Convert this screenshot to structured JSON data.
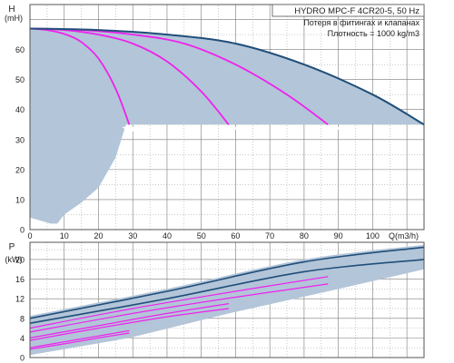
{
  "chart_data": [
    {
      "type": "line",
      "title": "HYDRO MPC-F 4CR20-5, 50 Hz",
      "annotations": [
        "Потеря в фитингах и клапанах",
        "Плотность = 1000 kg/m3"
      ],
      "xlabel": "Q(m3/h)",
      "ylabel_top": "H",
      "ylabel_unit": "(mH)",
      "xlim": [
        0,
        115
      ],
      "ylim": [
        0,
        75
      ],
      "x_ticks": [
        0,
        10,
        20,
        30,
        40,
        50,
        60,
        70,
        80,
        90,
        100
      ],
      "y_ticks": [
        0,
        10,
        20,
        30,
        40,
        50,
        60
      ],
      "grid": true,
      "series": [
        {
          "pumps": 1,
          "color": "#ee22ee",
          "points": [
            [
              0,
              67
            ],
            [
              5,
              66.5
            ],
            [
              10,
              65.2
            ],
            [
              15,
              62.5
            ],
            [
              20,
              57
            ],
            [
              25,
              47
            ],
            [
              29,
              35
            ]
          ]
        },
        {
          "pumps": 2,
          "color": "#ee22ee",
          "points": [
            [
              0,
              67
            ],
            [
              10,
              66.5
            ],
            [
              20,
              65
            ],
            [
              30,
              62
            ],
            [
              40,
              56
            ],
            [
              50,
              46
            ],
            [
              58,
              35
            ]
          ]
        },
        {
          "pumps": 3,
          "color": "#ee22ee",
          "points": [
            [
              0,
              67
            ],
            [
              15,
              66.5
            ],
            [
              30,
              65
            ],
            [
              45,
              62
            ],
            [
              60,
              55
            ],
            [
              75,
              45
            ],
            [
              87,
              35
            ]
          ]
        },
        {
          "pumps": 4,
          "color": "#1f4e79",
          "points": [
            [
              0,
              67
            ],
            [
              20,
              66.5
            ],
            [
              40,
              65
            ],
            [
              60,
              62
            ],
            [
              80,
              55
            ],
            [
              100,
              45
            ],
            [
              115,
              35
            ]
          ]
        }
      ],
      "envelope": {
        "upper": [
          [
            0,
            67
          ],
          [
            20,
            66.5
          ],
          [
            40,
            65
          ],
          [
            60,
            62
          ],
          [
            80,
            55
          ],
          [
            100,
            45
          ],
          [
            115,
            35
          ]
        ],
        "lower": [
          [
            115,
            35
          ],
          [
            28,
            35
          ],
          [
            25,
            24
          ],
          [
            20,
            14
          ],
          [
            15,
            9
          ],
          [
            10,
            5
          ],
          [
            8,
            2
          ],
          [
            6,
            2
          ],
          [
            0,
            4
          ]
        ],
        "notch_points": [
          [
            30,
            33
          ],
          [
            58,
            33
          ],
          [
            88,
            33
          ],
          [
            115,
            33
          ]
        ]
      }
    },
    {
      "type": "line",
      "ylabel_top": "P",
      "ylabel_unit": "(kW)",
      "xlim": [
        0,
        115
      ],
      "ylim": [
        0,
        23.5
      ],
      "y_ticks": [
        0,
        4,
        8,
        12,
        16,
        20
      ],
      "grid": true,
      "series": [
        {
          "pumps": 1,
          "line": "P1",
          "color": "#ee22ee",
          "points": [
            [
              0,
              2
            ],
            [
              10,
              3.2
            ],
            [
              20,
              4.4
            ],
            [
              29,
              5.5
            ]
          ]
        },
        {
          "pumps": 1,
          "line": "P2",
          "color": "#ee22ee",
          "points": [
            [
              0,
              1.7
            ],
            [
              10,
              2.8
            ],
            [
              20,
              4
            ],
            [
              29,
              5
            ]
          ]
        },
        {
          "pumps": 2,
          "line": "P1",
          "color": "#ee22ee",
          "points": [
            [
              0,
              4
            ],
            [
              20,
              6.5
            ],
            [
              40,
              9
            ],
            [
              58,
              11
            ]
          ]
        },
        {
          "pumps": 2,
          "line": "P2",
          "color": "#ee22ee",
          "points": [
            [
              0,
              3.5
            ],
            [
              20,
              6
            ],
            [
              40,
              8.3
            ],
            [
              58,
              10
            ]
          ]
        },
        {
          "pumps": 3,
          "line": "P1",
          "color": "#ee22ee",
          "points": [
            [
              0,
              6
            ],
            [
              30,
              10
            ],
            [
              60,
              13.5
            ],
            [
              87,
              16.5
            ]
          ]
        },
        {
          "pumps": 3,
          "line": "P2",
          "color": "#ee22ee",
          "points": [
            [
              0,
              5.2
            ],
            [
              30,
              9
            ],
            [
              60,
              12.3
            ],
            [
              87,
              15
            ]
          ]
        },
        {
          "pumps": 4,
          "line": "P1",
          "color": "#1f4e79",
          "points": [
            [
              0,
              8
            ],
            [
              40,
              13.5
            ],
            [
              80,
              19.5
            ],
            [
              115,
              22.5
            ]
          ]
        },
        {
          "pumps": 4,
          "line": "P2",
          "color": "#1f4e79",
          "points": [
            [
              0,
              7
            ],
            [
              40,
              12
            ],
            [
              80,
              17.5
            ],
            [
              115,
              20
            ]
          ]
        }
      ],
      "envelope": {
        "upper": [
          [
            0,
            8.5
          ],
          [
            40,
            14
          ],
          [
            80,
            20
          ],
          [
            115,
            23
          ]
        ],
        "lower": [
          [
            115,
            18
          ],
          [
            87,
            13.5
          ],
          [
            58,
            9
          ],
          [
            29,
            4
          ],
          [
            0,
            0.5
          ]
        ]
      }
    }
  ],
  "colors": {
    "envelope_fill": "#b3c5d8",
    "grid": "#7a7a7a",
    "pump_curve": "#ee22ee",
    "max_curve": "#1f4e79"
  }
}
